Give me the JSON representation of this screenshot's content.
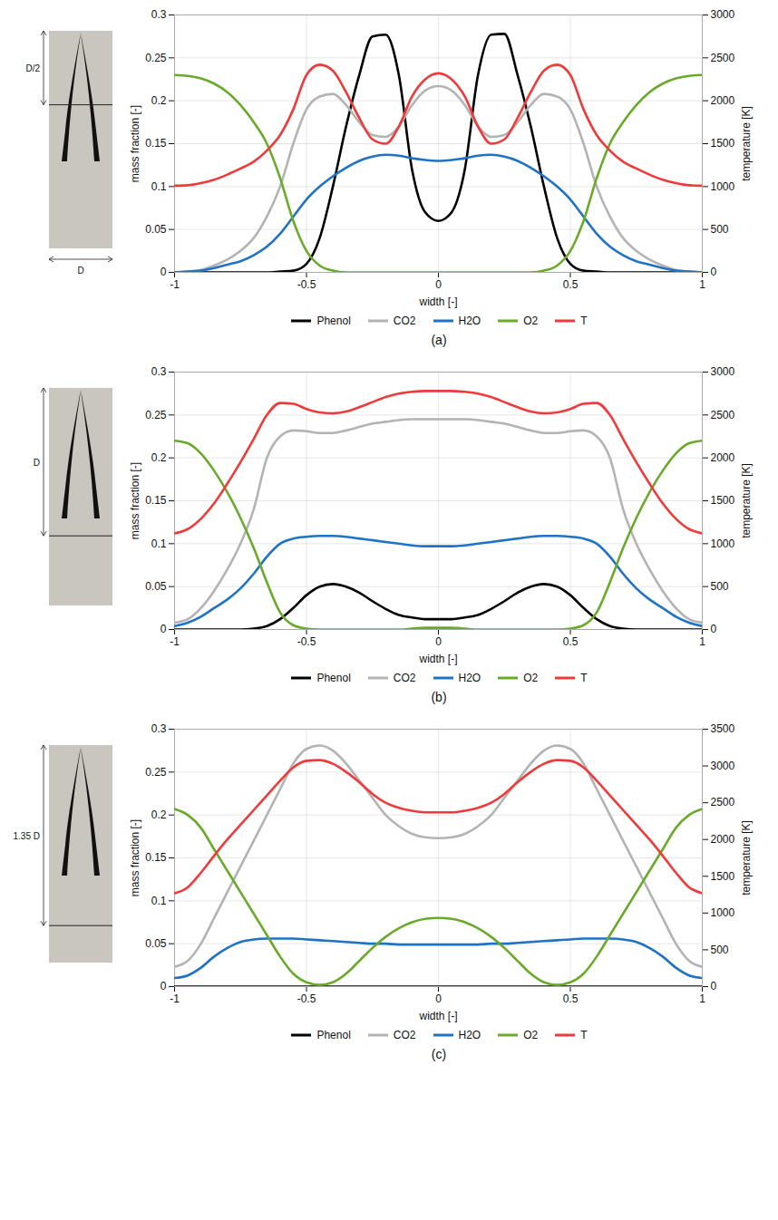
{
  "chart_data": [
    {
      "type": "line",
      "title": "(a)",
      "annotations": [
        "D/2",
        "D"
      ],
      "xlabel": "width [-]",
      "ylabel": "mass fraction [-]",
      "y2label": "temperature [K]",
      "grid": true,
      "legend": "bottom",
      "xlim": [
        -1,
        1
      ],
      "xticks": [
        -1,
        -0.5,
        0,
        0.5,
        1
      ],
      "ylim": [
        0,
        0.3
      ],
      "yticks": [
        0,
        0.05,
        0.1,
        0.15,
        0.2,
        0.25,
        0.3
      ],
      "y2lim": [
        0,
        3000
      ],
      "y2ticks": [
        0,
        500,
        1000,
        1500,
        2000,
        2500,
        3000
      ],
      "x": [
        -1,
        -0.95,
        -0.9,
        -0.85,
        -0.8,
        -0.75,
        -0.7,
        -0.65,
        -0.6,
        -0.55,
        -0.5,
        -0.45,
        -0.4,
        -0.35,
        -0.3,
        -0.25,
        -0.2,
        -0.15,
        -0.1,
        -0.05,
        0,
        0.05,
        0.1,
        0.15,
        0.2,
        0.25,
        0.3,
        0.35,
        0.4,
        0.45,
        0.5,
        0.55,
        0.6,
        0.65,
        0.7,
        0.75,
        0.8,
        0.85,
        0.9,
        0.95,
        1
      ],
      "series": [
        {
          "name": "Phenol",
          "color": "#000000",
          "values": [
            0,
            0,
            0,
            0,
            0,
            0,
            0,
            0,
            0.001,
            0.002,
            0.01,
            0.04,
            0.1,
            0.17,
            0.23,
            0.275,
            0.277,
            0.23,
            0.12,
            0.07,
            0.06,
            0.07,
            0.12,
            0.23,
            0.277,
            0.278,
            0.23,
            0.17,
            0.1,
            0.04,
            0.01,
            0.002,
            0.001,
            0,
            0,
            0,
            0,
            0,
            0,
            0,
            0
          ]
        },
        {
          "name": "CO2",
          "color": "#b3b3b3",
          "values": [
            0,
            0.001,
            0.003,
            0.008,
            0.015,
            0.025,
            0.04,
            0.065,
            0.1,
            0.15,
            0.19,
            0.205,
            0.208,
            0.195,
            0.175,
            0.16,
            0.158,
            0.17,
            0.195,
            0.212,
            0.217,
            0.212,
            0.195,
            0.17,
            0.158,
            0.16,
            0.175,
            0.195,
            0.208,
            0.205,
            0.19,
            0.15,
            0.1,
            0.065,
            0.04,
            0.025,
            0.015,
            0.008,
            0.003,
            0.001,
            0
          ]
        },
        {
          "name": "H2O",
          "color": "#1f72c4",
          "values": [
            0,
            0.001,
            0.002,
            0.005,
            0.009,
            0.013,
            0.02,
            0.03,
            0.045,
            0.065,
            0.085,
            0.1,
            0.112,
            0.122,
            0.13,
            0.135,
            0.137,
            0.136,
            0.133,
            0.131,
            0.13,
            0.131,
            0.133,
            0.136,
            0.137,
            0.135,
            0.13,
            0.122,
            0.112,
            0.1,
            0.085,
            0.065,
            0.045,
            0.03,
            0.02,
            0.013,
            0.009,
            0.005,
            0.002,
            0.001,
            0
          ]
        },
        {
          "name": "O2",
          "color": "#6aaa2a",
          "values": [
            0.23,
            0.229,
            0.226,
            0.22,
            0.21,
            0.195,
            0.175,
            0.15,
            0.11,
            0.06,
            0.025,
            0.008,
            0.002,
            0,
            0,
            0,
            0,
            0,
            0,
            0,
            0,
            0,
            0,
            0,
            0,
            0,
            0,
            0,
            0.002,
            0.008,
            0.025,
            0.06,
            0.11,
            0.15,
            0.175,
            0.195,
            0.21,
            0.22,
            0.226,
            0.229,
            0.23
          ]
        },
        {
          "name": "T",
          "color": "#f03a3a",
          "axis": "y2",
          "values": [
            1010,
            1015,
            1040,
            1080,
            1140,
            1210,
            1290,
            1420,
            1600,
            1900,
            2300,
            2420,
            2350,
            2100,
            1800,
            1550,
            1500,
            1700,
            2050,
            2250,
            2320,
            2250,
            2050,
            1700,
            1500,
            1550,
            1800,
            2100,
            2350,
            2420,
            2300,
            1900,
            1600,
            1420,
            1290,
            1210,
            1140,
            1080,
            1040,
            1015,
            1010
          ]
        }
      ]
    },
    {
      "type": "line",
      "title": "(b)",
      "annotations": [
        "D"
      ],
      "xlabel": "width [-]",
      "ylabel": "mass fraction [-]",
      "y2label": "temperature [K]",
      "grid": true,
      "legend": "bottom",
      "xlim": [
        -1,
        1
      ],
      "xticks": [
        -1,
        -0.5,
        0,
        0.5,
        1
      ],
      "ylim": [
        0,
        0.3
      ],
      "yticks": [
        0,
        0.05,
        0.1,
        0.15,
        0.2,
        0.25,
        0.3
      ],
      "y2lim": [
        0,
        3000
      ],
      "y2ticks": [
        0,
        500,
        1000,
        1500,
        2000,
        2500,
        3000
      ],
      "x": [
        -1,
        -0.95,
        -0.9,
        -0.85,
        -0.8,
        -0.75,
        -0.7,
        -0.65,
        -0.6,
        -0.55,
        -0.5,
        -0.45,
        -0.4,
        -0.35,
        -0.3,
        -0.25,
        -0.2,
        -0.15,
        -0.1,
        -0.05,
        0,
        0.05,
        0.1,
        0.15,
        0.2,
        0.25,
        0.3,
        0.35,
        0.4,
        0.45,
        0.5,
        0.55,
        0.6,
        0.65,
        0.7,
        0.75,
        0.8,
        0.85,
        0.9,
        0.95,
        1
      ],
      "series": [
        {
          "name": "Phenol",
          "color": "#000000",
          "values": [
            0,
            0,
            0,
            0,
            0,
            0,
            0.001,
            0.004,
            0.012,
            0.025,
            0.04,
            0.05,
            0.053,
            0.05,
            0.043,
            0.033,
            0.024,
            0.017,
            0.014,
            0.012,
            0.012,
            0.012,
            0.014,
            0.017,
            0.024,
            0.033,
            0.043,
            0.05,
            0.053,
            0.05,
            0.04,
            0.025,
            0.012,
            0.004,
            0.001,
            0,
            0,
            0,
            0,
            0,
            0
          ]
        },
        {
          "name": "CO2",
          "color": "#b3b3b3",
          "values": [
            0.008,
            0.012,
            0.025,
            0.045,
            0.07,
            0.1,
            0.14,
            0.2,
            0.225,
            0.232,
            0.231,
            0.229,
            0.229,
            0.232,
            0.236,
            0.24,
            0.242,
            0.244,
            0.245,
            0.245,
            0.245,
            0.245,
            0.245,
            0.244,
            0.242,
            0.24,
            0.236,
            0.232,
            0.229,
            0.229,
            0.231,
            0.232,
            0.225,
            0.2,
            0.14,
            0.1,
            0.07,
            0.045,
            0.025,
            0.012,
            0.008
          ]
        },
        {
          "name": "H2O",
          "color": "#1f72c4",
          "values": [
            0.004,
            0.008,
            0.015,
            0.025,
            0.035,
            0.048,
            0.065,
            0.085,
            0.1,
            0.106,
            0.108,
            0.109,
            0.109,
            0.108,
            0.106,
            0.104,
            0.102,
            0.1,
            0.098,
            0.097,
            0.097,
            0.097,
            0.098,
            0.1,
            0.102,
            0.104,
            0.106,
            0.108,
            0.109,
            0.109,
            0.108,
            0.106,
            0.1,
            0.085,
            0.065,
            0.048,
            0.035,
            0.025,
            0.015,
            0.008,
            0.004
          ]
        },
        {
          "name": "O2",
          "color": "#6aaa2a",
          "values": [
            0.22,
            0.217,
            0.205,
            0.185,
            0.16,
            0.13,
            0.095,
            0.055,
            0.02,
            0.005,
            0.001,
            0,
            0,
            0,
            0,
            0,
            0,
            0,
            0.001,
            0.002,
            0.002,
            0.002,
            0.001,
            0,
            0,
            0,
            0,
            0,
            0,
            0,
            0.001,
            0.005,
            0.02,
            0.055,
            0.095,
            0.13,
            0.16,
            0.185,
            0.205,
            0.217,
            0.22
          ]
        },
        {
          "name": "T",
          "color": "#f03a3a",
          "axis": "y2",
          "values": [
            1120,
            1170,
            1290,
            1470,
            1700,
            1950,
            2220,
            2500,
            2640,
            2630,
            2570,
            2530,
            2520,
            2540,
            2590,
            2650,
            2710,
            2750,
            2770,
            2780,
            2780,
            2780,
            2770,
            2750,
            2710,
            2650,
            2590,
            2540,
            2520,
            2530,
            2570,
            2630,
            2640,
            2500,
            2220,
            1950,
            1700,
            1470,
            1290,
            1170,
            1120
          ]
        }
      ]
    },
    {
      "type": "line",
      "title": "(c)",
      "annotations": [
        "1.35 D"
      ],
      "xlabel": "width [-]",
      "ylabel": "mass fraction [-]",
      "y2label": "temperature [K]",
      "grid": true,
      "legend": "bottom",
      "xlim": [
        -1,
        1
      ],
      "xticks": [
        -1,
        -0.5,
        0,
        0.5,
        1
      ],
      "ylim": [
        0,
        0.3
      ],
      "yticks": [
        0,
        0.05,
        0.1,
        0.15,
        0.2,
        0.25,
        0.3
      ],
      "y2lim": [
        0,
        3500
      ],
      "y2ticks": [
        0,
        500,
        1000,
        1500,
        2000,
        2500,
        3000,
        3500
      ],
      "x": [
        -1,
        -0.95,
        -0.9,
        -0.85,
        -0.8,
        -0.75,
        -0.7,
        -0.65,
        -0.6,
        -0.55,
        -0.5,
        -0.45,
        -0.4,
        -0.35,
        -0.3,
        -0.25,
        -0.2,
        -0.15,
        -0.1,
        -0.05,
        0,
        0.05,
        0.1,
        0.15,
        0.2,
        0.25,
        0.3,
        0.35,
        0.4,
        0.45,
        0.5,
        0.55,
        0.6,
        0.65,
        0.7,
        0.75,
        0.8,
        0.85,
        0.9,
        0.95,
        1
      ],
      "series": [
        {
          "name": "Phenol",
          "color": "#000000",
          "values": [
            0,
            0,
            0,
            0,
            0,
            0,
            0,
            0,
            0,
            0,
            0,
            0,
            0,
            0,
            0,
            0,
            0,
            0,
            0,
            0,
            0,
            0,
            0,
            0,
            0,
            0,
            0,
            0,
            0,
            0,
            0,
            0,
            0,
            0,
            0,
            0,
            0,
            0,
            0,
            0,
            0
          ]
        },
        {
          "name": "CO2",
          "color": "#b3b3b3",
          "values": [
            0.023,
            0.03,
            0.05,
            0.08,
            0.11,
            0.14,
            0.17,
            0.2,
            0.23,
            0.26,
            0.277,
            0.281,
            0.275,
            0.26,
            0.24,
            0.22,
            0.2,
            0.187,
            0.178,
            0.174,
            0.173,
            0.174,
            0.178,
            0.187,
            0.2,
            0.22,
            0.24,
            0.26,
            0.275,
            0.281,
            0.277,
            0.26,
            0.23,
            0.2,
            0.17,
            0.14,
            0.11,
            0.08,
            0.05,
            0.03,
            0.023
          ]
        },
        {
          "name": "H2O",
          "color": "#1f72c4",
          "values": [
            0.01,
            0.013,
            0.022,
            0.035,
            0.045,
            0.052,
            0.055,
            0.056,
            0.056,
            0.056,
            0.055,
            0.054,
            0.053,
            0.052,
            0.051,
            0.05,
            0.05,
            0.049,
            0.049,
            0.049,
            0.049,
            0.049,
            0.049,
            0.049,
            0.05,
            0.05,
            0.051,
            0.052,
            0.053,
            0.054,
            0.055,
            0.056,
            0.056,
            0.056,
            0.055,
            0.052,
            0.045,
            0.035,
            0.022,
            0.013,
            0.01
          ]
        },
        {
          "name": "O2",
          "color": "#6aaa2a",
          "values": [
            0.207,
            0.2,
            0.185,
            0.16,
            0.135,
            0.11,
            0.085,
            0.06,
            0.035,
            0.015,
            0.005,
            0.002,
            0.005,
            0.015,
            0.03,
            0.045,
            0.058,
            0.068,
            0.075,
            0.079,
            0.08,
            0.079,
            0.075,
            0.068,
            0.058,
            0.045,
            0.03,
            0.015,
            0.005,
            0.002,
            0.005,
            0.015,
            0.035,
            0.06,
            0.085,
            0.11,
            0.135,
            0.16,
            0.185,
            0.2,
            0.207
          ]
        },
        {
          "name": "T",
          "color": "#f03a3a",
          "axis": "y2",
          "values": [
            1270,
            1350,
            1550,
            1780,
            2000,
            2200,
            2400,
            2600,
            2800,
            2980,
            3070,
            3080,
            3030,
            2920,
            2780,
            2620,
            2500,
            2430,
            2390,
            2370,
            2370,
            2370,
            2390,
            2430,
            2500,
            2620,
            2780,
            2920,
            3030,
            3080,
            3070,
            2980,
            2800,
            2600,
            2400,
            2200,
            2000,
            1780,
            1550,
            1350,
            1270
          ]
        }
      ]
    }
  ]
}
